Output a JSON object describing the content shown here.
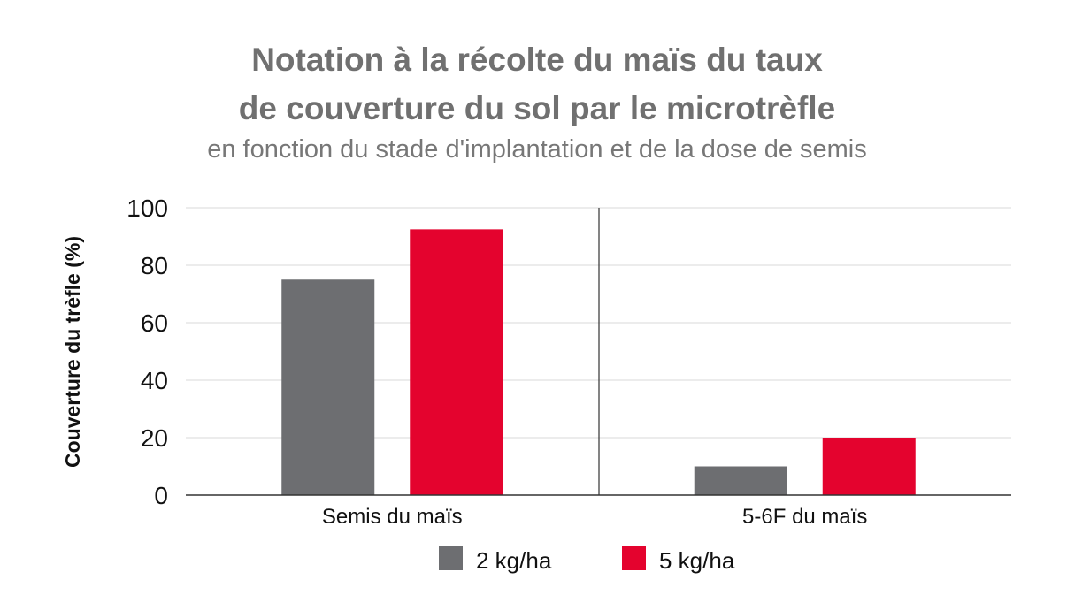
{
  "chart_data": {
    "type": "bar",
    "title_lines": [
      "Notation à la récolte du maïs du taux",
      "de couverture du sol par le microtrèfle"
    ],
    "subtitle": "en fonction du stade d'implantation et de la dose de semis",
    "xlabel": "",
    "ylabel": "Couverture du trèfle (%)",
    "ylim": [
      0,
      100
    ],
    "yticks": [
      0,
      20,
      40,
      60,
      80,
      100
    ],
    "grid": true,
    "categories": [
      "Semis du maïs",
      "5-6F du maïs"
    ],
    "series": [
      {
        "name": "2 kg/ha",
        "color": "#6d6e71",
        "values": [
          75,
          10
        ]
      },
      {
        "name": "5 kg/ha",
        "color": "#e4032e",
        "values": [
          92.5,
          20
        ]
      }
    ],
    "legend_position": "bottom-center"
  }
}
